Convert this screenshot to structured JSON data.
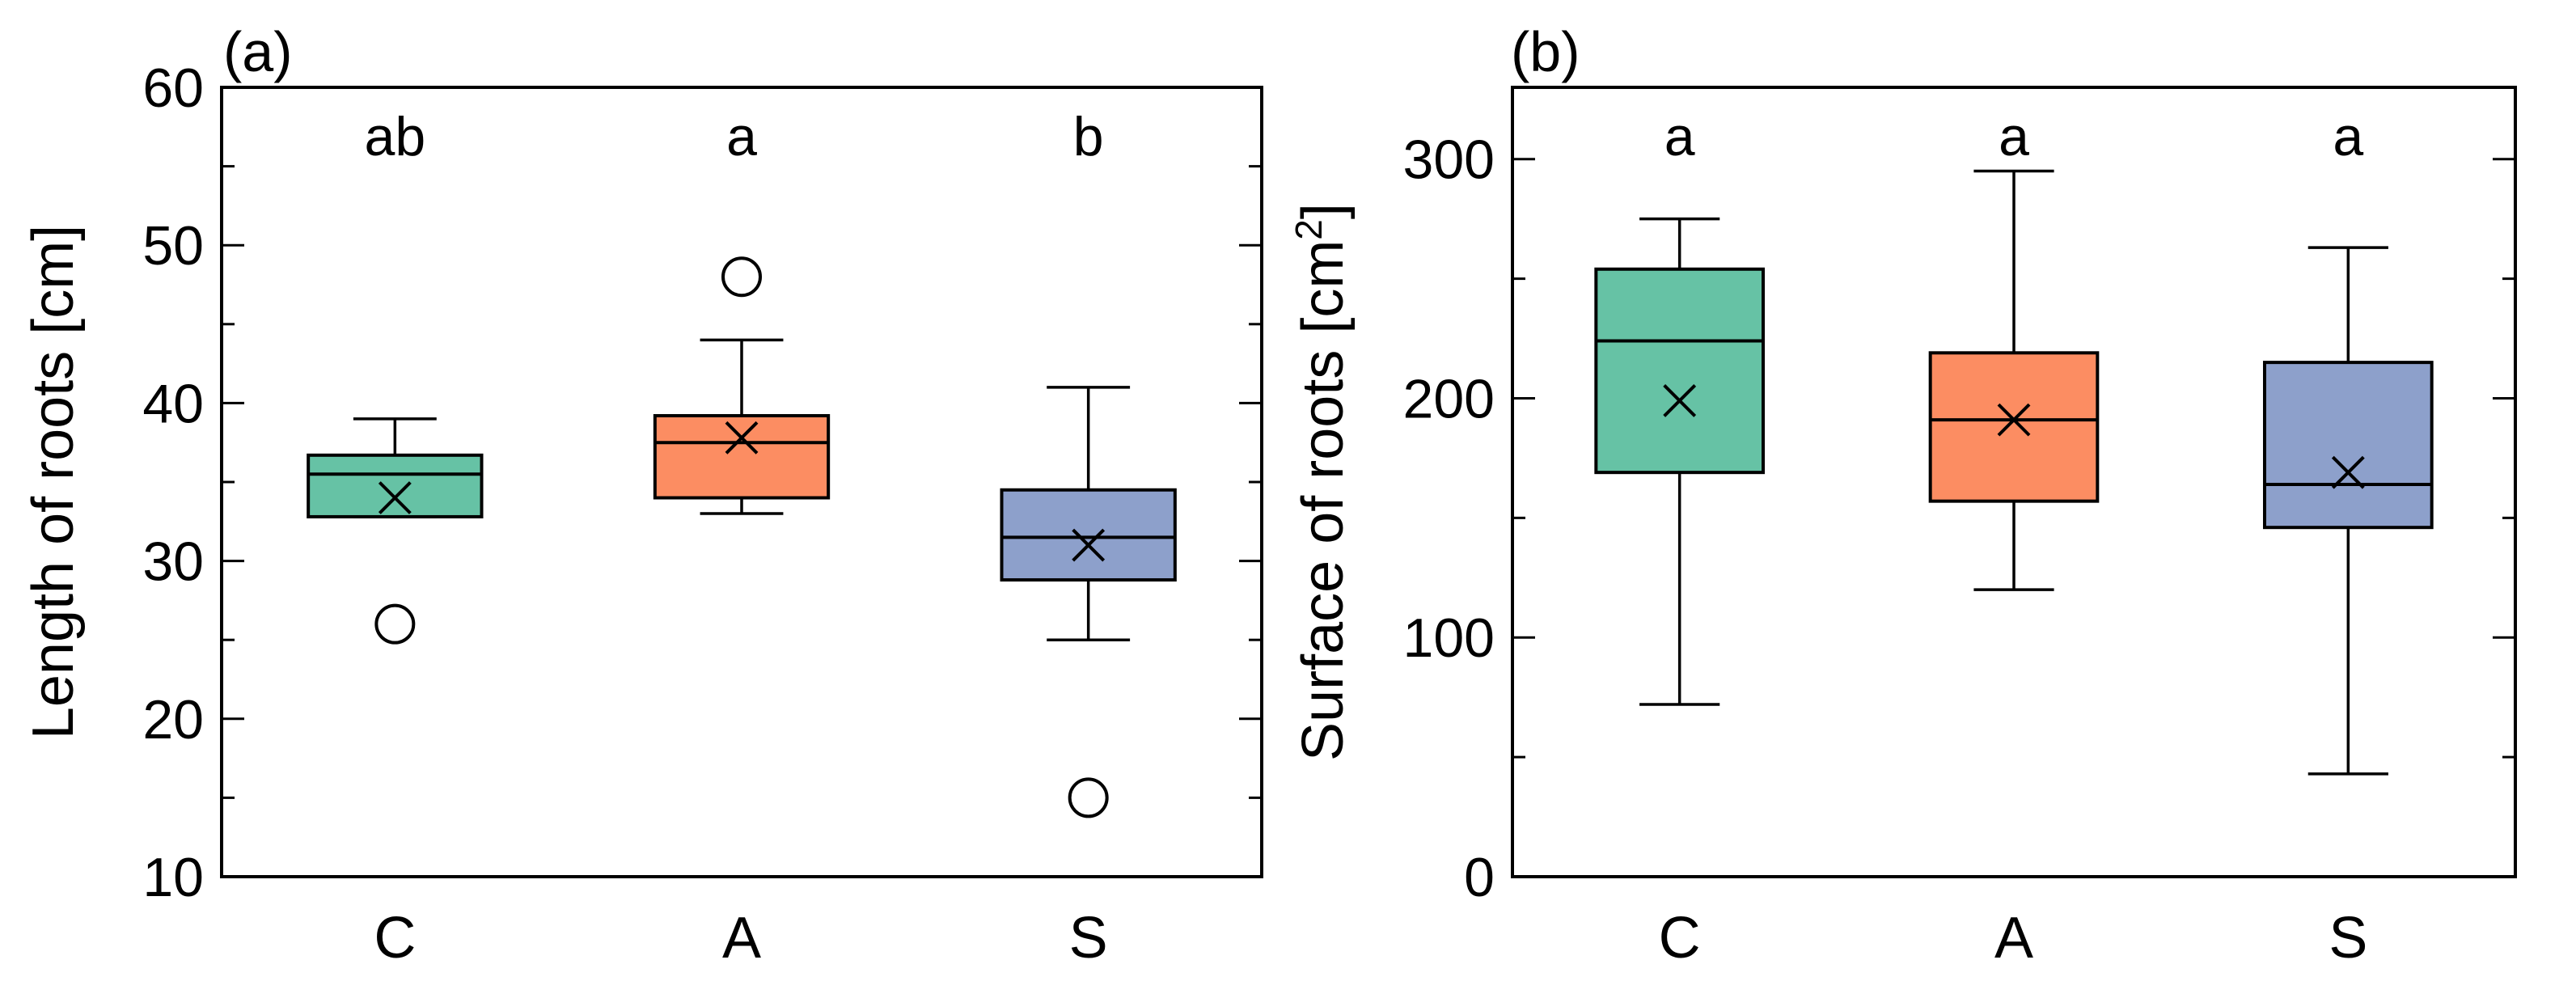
{
  "chart_data": [
    {
      "type": "box",
      "panel_label": "(a)",
      "ylabel": "Length of roots [cm]",
      "ylim": [
        10,
        60
      ],
      "yticks": [
        10,
        20,
        30,
        40,
        50,
        60
      ],
      "ytick_labels": [
        "10",
        "20",
        "30",
        "40",
        "50",
        "60"
      ],
      "categories": [
        "C",
        "A",
        "S"
      ],
      "boxes": [
        {
          "category": "C",
          "q1": 32.8,
          "median": 35.5,
          "q3": 36.7,
          "whisker_low": 32.8,
          "whisker_high": 39.0,
          "mean": 34.0,
          "outliers": [
            26.0
          ],
          "significance": "ab",
          "color": "#66c2a5"
        },
        {
          "category": "A",
          "q1": 34.0,
          "median": 37.5,
          "q3": 39.2,
          "whisker_low": 33.0,
          "whisker_high": 44.0,
          "mean": 37.8,
          "outliers": [
            48.0
          ],
          "significance": "a",
          "color": "#fc8d62"
        },
        {
          "category": "S",
          "q1": 28.8,
          "median": 31.5,
          "q3": 34.5,
          "whisker_low": 25.0,
          "whisker_high": 41.0,
          "mean": 31.0,
          "outliers": [
            15.0
          ],
          "significance": "b",
          "color": "#8da0cb"
        }
      ]
    },
    {
      "type": "box",
      "panel_label": "(b)",
      "ylabel": "Surface of roots [cm",
      "ylabel_superscript": "2",
      "ylabel_suffix": "]",
      "ylim": [
        0,
        330
      ],
      "yticks": [
        0,
        100,
        200,
        300
      ],
      "ytick_labels": [
        "0",
        "100",
        "200",
        "300"
      ],
      "categories": [
        "C",
        "A",
        "S"
      ],
      "boxes": [
        {
          "category": "C",
          "q1": 169,
          "median": 224,
          "q3": 254,
          "whisker_low": 72,
          "whisker_high": 275,
          "mean": 199,
          "outliers": [],
          "significance": "a",
          "color": "#66c2a5"
        },
        {
          "category": "A",
          "q1": 157,
          "median": 191,
          "q3": 219,
          "whisker_low": 120,
          "whisker_high": 295,
          "mean": 191,
          "outliers": [],
          "significance": "a",
          "color": "#fc8d62"
        },
        {
          "category": "S",
          "q1": 146,
          "median": 164,
          "q3": 215,
          "whisker_low": 43,
          "whisker_high": 263,
          "mean": 169,
          "outliers": [],
          "significance": "a",
          "color": "#8da0cb"
        }
      ]
    }
  ]
}
